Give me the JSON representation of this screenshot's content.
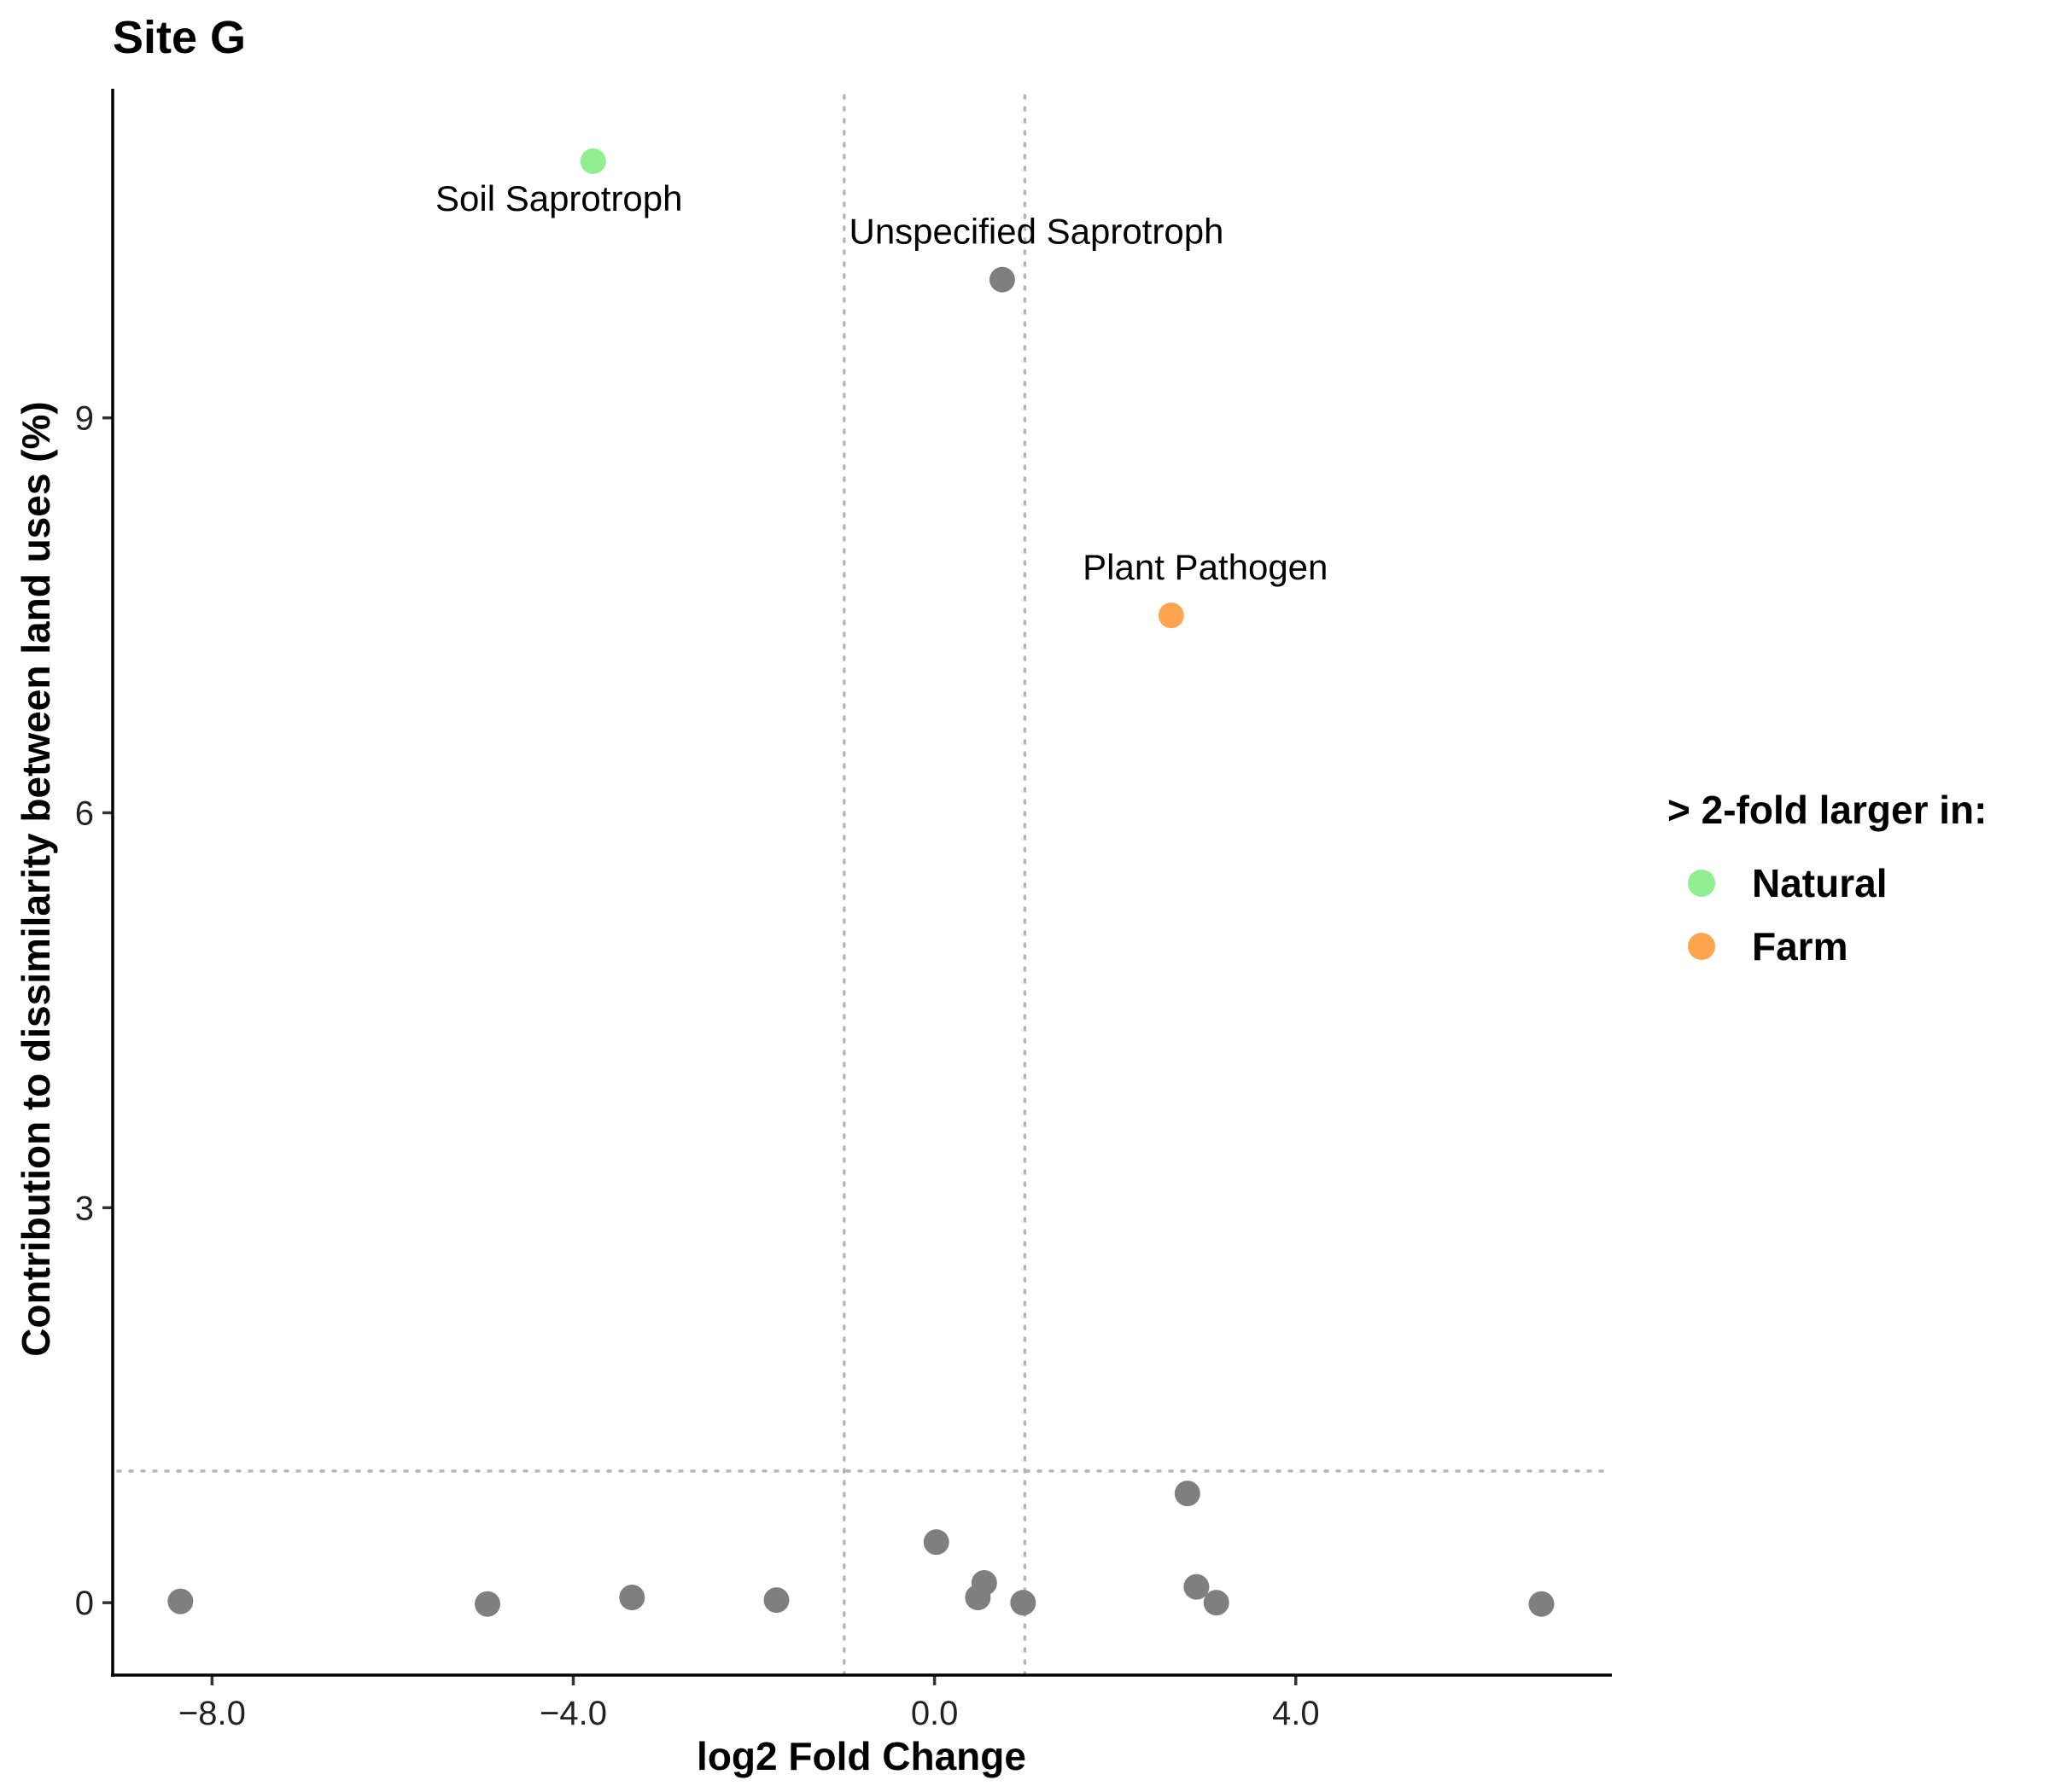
{
  "chart_data": {
    "type": "scatter",
    "title": "Site G",
    "xlabel": "log2 Fold Change",
    "ylabel": "Contribution to dissimilarity between land uses (%)",
    "xlim": [
      -9.1,
      7.5
    ],
    "ylim": [
      -0.55,
      11.5
    ],
    "x_ticks": [
      -8.0,
      -4.0,
      0.0,
      4.0
    ],
    "x_tick_labels": [
      "−8.0",
      "−4.0",
      "0.0",
      "4.0"
    ],
    "y_ticks": [
      0,
      3,
      6,
      9
    ],
    "y_tick_labels": [
      "0",
      "3",
      "6",
      "9"
    ],
    "reference_lines": {
      "vertical": [
        -1,
        1
      ],
      "horizontal": [
        1
      ]
    },
    "grid": false,
    "legend": {
      "title": "> 2-fold larger in:",
      "placement": "right",
      "entries": [
        {
          "label": "Natural",
          "group": "natural",
          "color": "#90ee90"
        },
        {
          "label": "Farm",
          "group": "farm",
          "color": "#ffa54f"
        }
      ]
    },
    "colors": {
      "natural": "#90ee90",
      "farm": "#ffa54f",
      "none": "#7f7f7f"
    },
    "points": [
      {
        "x": -3.78,
        "y": 10.95,
        "group": "natural",
        "label": "Soil Saprotroph"
      },
      {
        "x": 0.75,
        "y": 10.05,
        "group": "none",
        "label": "Unspecified Saprotroph"
      },
      {
        "x": 2.62,
        "y": 7.5,
        "group": "farm",
        "label": "Plant Pathogen"
      },
      {
        "x": -8.35,
        "y": 0.01,
        "group": "none"
      },
      {
        "x": -4.95,
        "y": -0.01,
        "group": "none"
      },
      {
        "x": -3.35,
        "y": 0.04,
        "group": "none"
      },
      {
        "x": -1.75,
        "y": 0.02,
        "group": "none"
      },
      {
        "x": 0.02,
        "y": 0.46,
        "group": "none"
      },
      {
        "x": 0.55,
        "y": 0.15,
        "group": "none"
      },
      {
        "x": 0.48,
        "y": 0.04,
        "group": "none"
      },
      {
        "x": 0.98,
        "y": 0.0,
        "group": "none"
      },
      {
        "x": 2.8,
        "y": 0.83,
        "group": "none"
      },
      {
        "x": 2.9,
        "y": 0.12,
        "group": "none"
      },
      {
        "x": 3.12,
        "y": 0.0,
        "group": "none"
      },
      {
        "x": 6.72,
        "y": -0.01,
        "group": "none"
      }
    ]
  }
}
